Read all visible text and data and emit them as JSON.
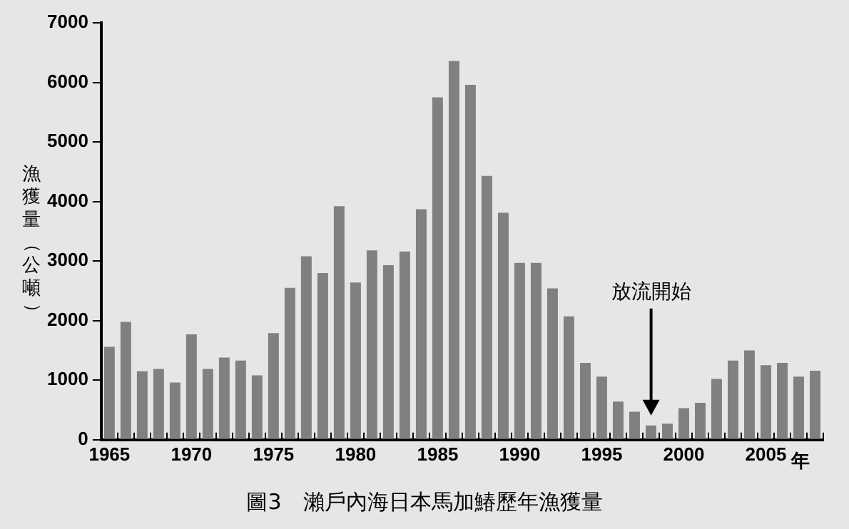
{
  "chart_data": {
    "type": "bar",
    "title": "圖3　瀨戶內海日本馬加鰆歷年漁獲量",
    "xlabel": "年",
    "ylabel": "漁獲量（公噸）",
    "categories": [
      "1965",
      null,
      null,
      null,
      null,
      "1970",
      null,
      null,
      null,
      null,
      "1975",
      null,
      null,
      null,
      null,
      "1980",
      null,
      null,
      null,
      null,
      "1985",
      null,
      null,
      null,
      null,
      "1990",
      null,
      null,
      null,
      null,
      "1995",
      null,
      null,
      null,
      null,
      "2000",
      null,
      null,
      null,
      null,
      "2005",
      null,
      null,
      null
    ],
    "values": [
      1560,
      1980,
      1150,
      1190,
      960,
      1770,
      1190,
      1380,
      1330,
      1080,
      1790,
      2550,
      3080,
      2800,
      3920,
      2640,
      3180,
      2930,
      3160,
      3870,
      5750,
      6360,
      5960,
      4430,
      3810,
      2970,
      2970,
      2540,
      2070,
      1290,
      1060,
      640,
      470,
      240,
      270,
      530,
      620,
      1020,
      1330,
      1500,
      1250,
      1290,
      1060,
      1160
    ],
    "color": "#808080",
    "ylim": [
      0,
      7000
    ],
    "yticks": [
      0,
      1000,
      2000,
      3000,
      4000,
      5000,
      6000,
      7000
    ],
    "grid": false,
    "legend": false,
    "annotations": [
      "放流開始"
    ]
  }
}
